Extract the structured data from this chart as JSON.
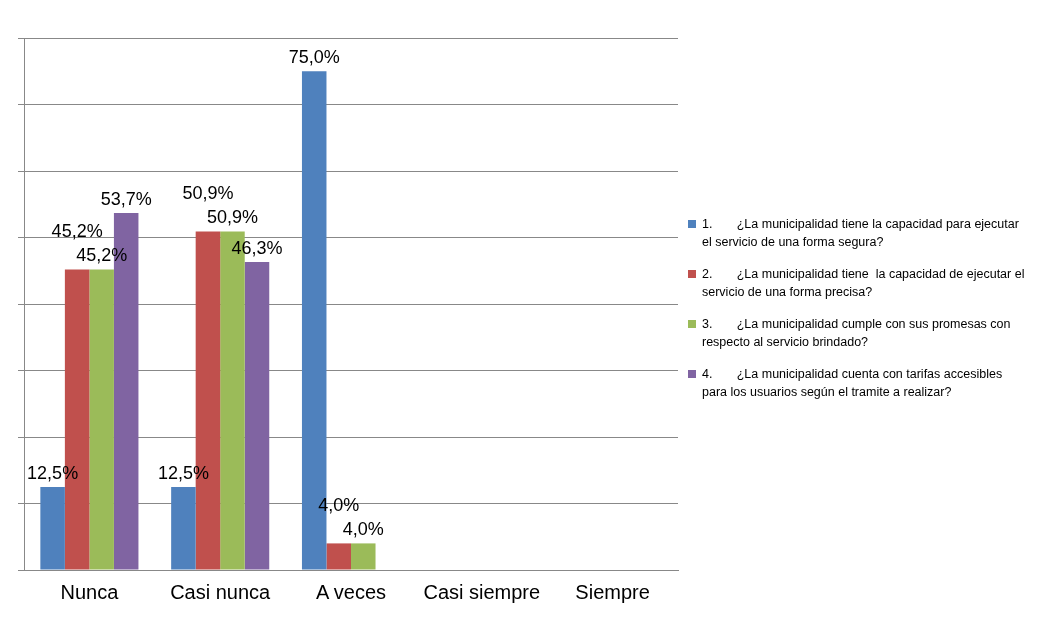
{
  "chart_data": {
    "type": "bar",
    "categories": [
      "Nunca",
      "Casi nunca",
      "A veces",
      "Casi siempre",
      "Siempre"
    ],
    "series": [
      {
        "name": "1.       ¿La municipalidad tiene la capacidad para ejecutar el servicio de una forma segura?",
        "color": "#4f81bd",
        "values": [
          12.5,
          12.5,
          75.0,
          null,
          null
        ],
        "value_labels": [
          "12,5%",
          "12,5%",
          "75,0%",
          null,
          null
        ]
      },
      {
        "name": "2.       ¿La municipalidad tiene  la capacidad de ejecutar el servicio de una forma precisa?",
        "color": "#c0504d",
        "values": [
          45.2,
          50.9,
          4.0,
          null,
          null
        ],
        "value_labels": [
          "45,2%",
          "50,9%",
          "4,0%",
          null,
          null
        ]
      },
      {
        "name": "3.       ¿La municipalidad cumple con sus promesas con respecto al servicio brindado?",
        "color": "#9bbb59",
        "values": [
          45.2,
          50.9,
          4.0,
          null,
          null
        ],
        "value_labels": [
          "45,2%",
          "50,9%",
          "4,0%",
          null,
          null
        ]
      },
      {
        "name": "4.       ¿La municipalidad cuenta con tarifas accesibles para los usuarios según el tramite a realizar?",
        "color": "#8064a2",
        "values": [
          53.7,
          46.3,
          null,
          null,
          null
        ],
        "value_labels": [
          "53,7%",
          "46,3%",
          null,
          null,
          null
        ]
      }
    ],
    "ylim": [
      0,
      80
    ],
    "yticks": [
      {
        "value": 0,
        "label": null
      },
      {
        "value": 10,
        "label": null
      },
      {
        "value": 20,
        "label": null
      },
      {
        "value": 30,
        "label": null
      },
      {
        "value": 40,
        "label": null
      },
      {
        "value": 50,
        "label": null
      },
      {
        "value": 60,
        "label": null
      },
      {
        "value": 70,
        "label": null
      },
      {
        "value": 80,
        "label": null
      }
    ],
    "tick_labels": "x",
    "grid": "y",
    "legend": "right"
  }
}
